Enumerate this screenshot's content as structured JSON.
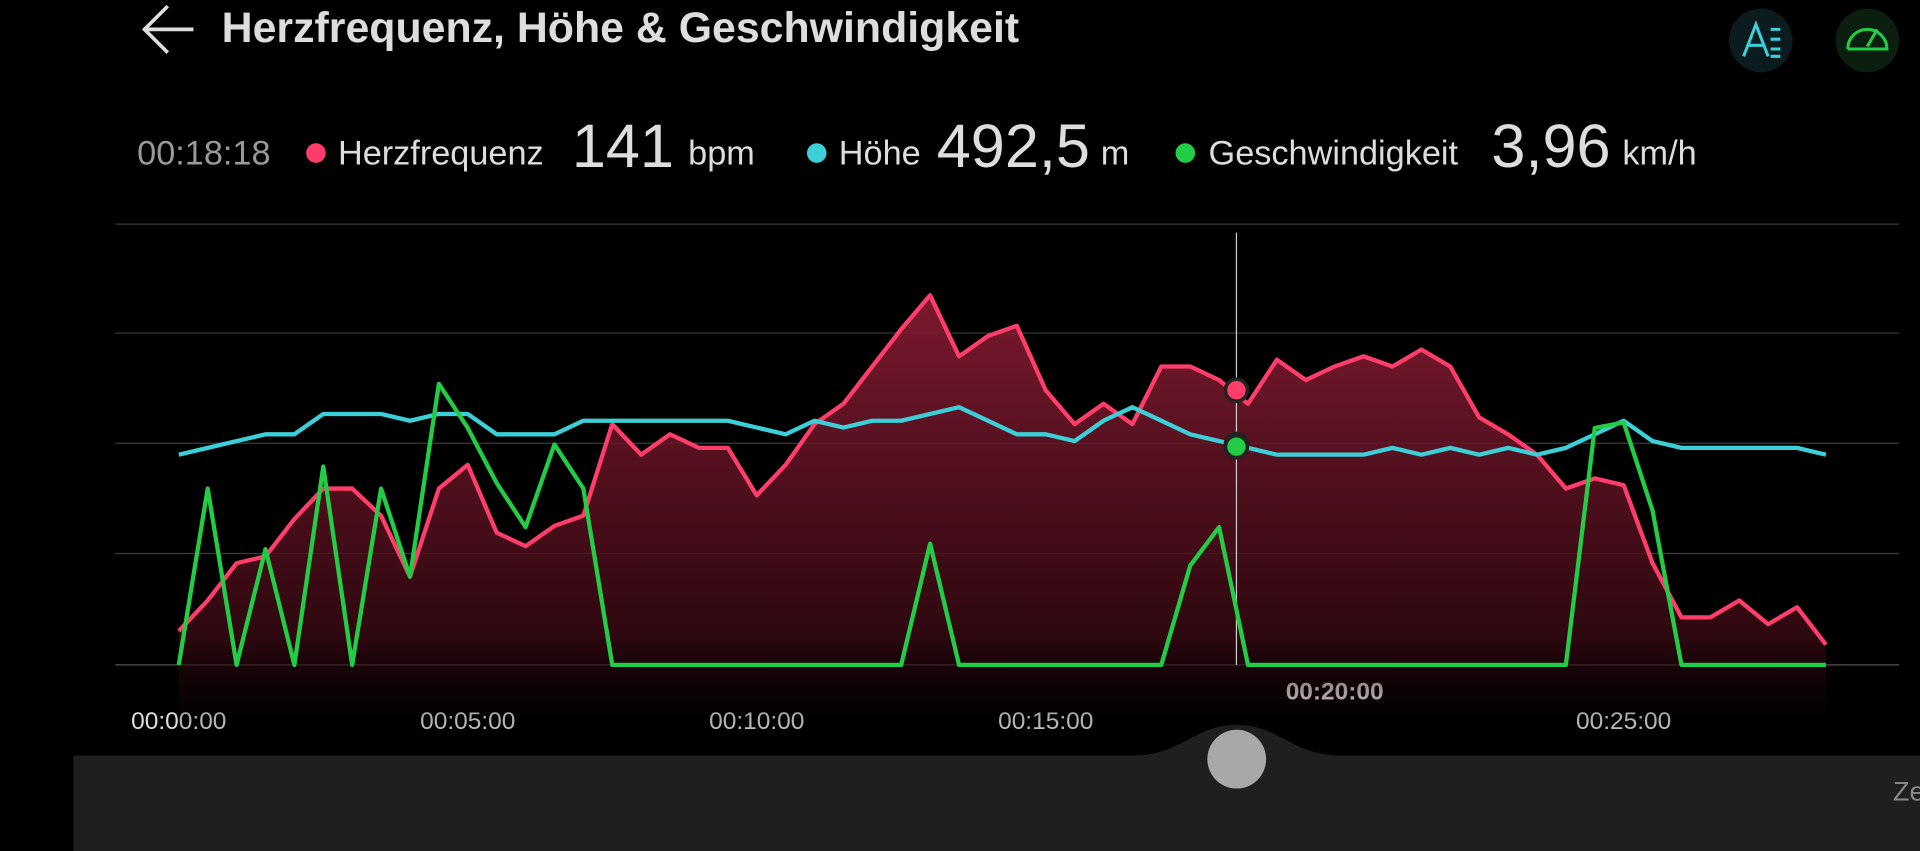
{
  "chart_data": {
    "type": "line",
    "title": "Herzfrequenz, Höhe & Geschwindigkeit",
    "x": [
      0,
      0.5,
      1,
      1.5,
      2,
      2.5,
      3,
      3.5,
      4,
      4.5,
      5,
      5.5,
      6,
      6.5,
      7,
      7.5,
      8,
      8.5,
      9,
      9.5,
      10,
      10.5,
      11,
      11.5,
      12,
      12.5,
      13,
      13.5,
      14,
      14.5,
      15,
      15.5,
      16,
      16.5,
      17,
      17.5,
      18,
      18.5,
      19,
      19.5,
      20,
      20.5,
      21,
      21.5,
      22,
      22.5,
      23,
      23.5,
      24,
      24.5,
      25,
      25.5,
      26,
      26.5,
      27,
      27.5,
      28,
      28.5
    ],
    "xlim": [
      0,
      30
    ],
    "xticks": [
      {
        "value": 0,
        "label": "00:00:00"
      },
      {
        "value": 5,
        "label": "00:05:00"
      },
      {
        "value": 10,
        "label": "00:10:00"
      },
      {
        "value": 15,
        "label": "00:15:00"
      },
      {
        "value": 20,
        "label": "00:20:00"
      },
      {
        "value": 25,
        "label": "00:25:00"
      }
    ],
    "series": [
      {
        "name": "Herzfrequenz",
        "unit": "bpm",
        "color": "#ff3d6a",
        "area": true,
        "ylim": [
          60,
          190
        ],
        "values": [
          70,
          79,
          90,
          92,
          103,
          112,
          112,
          104,
          86,
          112,
          119,
          99,
          95,
          101,
          104,
          131,
          122,
          128,
          124,
          124,
          110,
          119,
          131,
          137,
          148,
          159,
          169,
          151,
          157,
          160,
          141,
          131,
          137,
          131,
          148,
          148,
          144,
          137,
          150,
          144,
          148,
          151,
          148,
          153,
          148,
          133,
          128,
          122,
          112,
          115,
          113,
          90,
          74,
          74,
          79,
          72,
          77,
          66
        ]
      },
      {
        "name": "Höhe",
        "unit": "m",
        "color": "#3ccfd8",
        "area": false,
        "ylim": [
          460,
          525
        ],
        "values": [
          491,
          492,
          493,
          494,
          494,
          497,
          497,
          497,
          496,
          497,
          497,
          494,
          494,
          494,
          496,
          496,
          496,
          496,
          496,
          496,
          495,
          494,
          496,
          495,
          496,
          496,
          497,
          498,
          496,
          494,
          494,
          493,
          496,
          498,
          496,
          494,
          493,
          492,
          491,
          491,
          491,
          491,
          492,
          491,
          492,
          491,
          492,
          491,
          492,
          494,
          496,
          493,
          492,
          492,
          492,
          492,
          492,
          491
        ]
      },
      {
        "name": "Geschwindigkeit",
        "unit": "km/h",
        "color": "#22cc44",
        "area": false,
        "ylim": [
          0,
          8
        ],
        "values": [
          0,
          3.2,
          0,
          2.1,
          0,
          3.6,
          0,
          3.2,
          1.6,
          5.1,
          4.3,
          3.3,
          2.5,
          4.0,
          3.2,
          0,
          0,
          0,
          0,
          0,
          0,
          0,
          0,
          0,
          0,
          0,
          2.2,
          0,
          0,
          0,
          0,
          0,
          0,
          0,
          0,
          1.8,
          2.5,
          0,
          0,
          0,
          0,
          0,
          0,
          0,
          0,
          0,
          0,
          0,
          0,
          4.3,
          4.4,
          2.8,
          0,
          0,
          0,
          0,
          0,
          0
        ]
      }
    ],
    "cursor": {
      "x": {
        "value": 18.3,
        "label": "00:18:18"
      },
      "values": [
        141,
        {
          "value": 492.5,
          "label": "492,5"
        },
        {
          "value": 3.96,
          "label": "3,96"
        }
      ]
    },
    "footer_label": "Ze"
  }
}
